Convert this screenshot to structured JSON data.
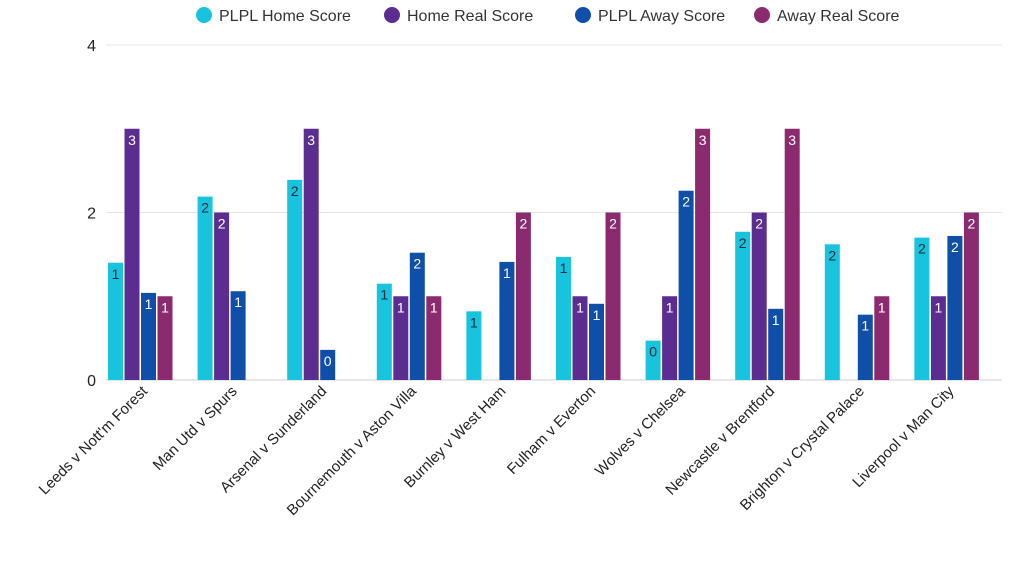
{
  "chart_data": {
    "type": "bar",
    "title": "",
    "xlabel": "",
    "ylabel": "",
    "ylim": [
      0,
      4
    ],
    "yticks": [
      0,
      2,
      4
    ],
    "grid": true,
    "legend_position": "top-center",
    "categories": [
      "Leeds v Nott'm Forest",
      "Man Utd v Spurs",
      "Arsenal v Sunderland",
      "Bournemouth v Aston Villa",
      "Burnley v West Ham",
      "Fulham v Everton",
      "Wolves v Chelsea",
      "Newcastle v Brentford",
      "Brighton v Crystal Palace",
      "Liverpool v Man City"
    ],
    "series": [
      {
        "name": "PLPL Home Score",
        "color": "#17c3dd",
        "label_color": "#1a2a3a",
        "values": [
          1.4,
          2.19,
          2.39,
          1.15,
          0.82,
          1.47,
          0.47,
          1.77,
          1.62,
          1.7
        ]
      },
      {
        "name": "Home Real Score",
        "color": "#5c2d91",
        "label_color": "#ffffff",
        "values": [
          3,
          2,
          3,
          1,
          0,
          1,
          1,
          2,
          0,
          1
        ]
      },
      {
        "name": "PLPL Away Score",
        "color": "#0f4fa8",
        "label_color": "#ffffff",
        "values": [
          1.04,
          1.06,
          0.36,
          1.52,
          1.41,
          0.91,
          2.26,
          0.85,
          0.78,
          1.72
        ]
      },
      {
        "name": "Away Real Score",
        "color": "#8b2a6f",
        "label_color": "#ffffff",
        "values": [
          1,
          0,
          0,
          1,
          2,
          2,
          3,
          3,
          1,
          2
        ]
      }
    ]
  }
}
